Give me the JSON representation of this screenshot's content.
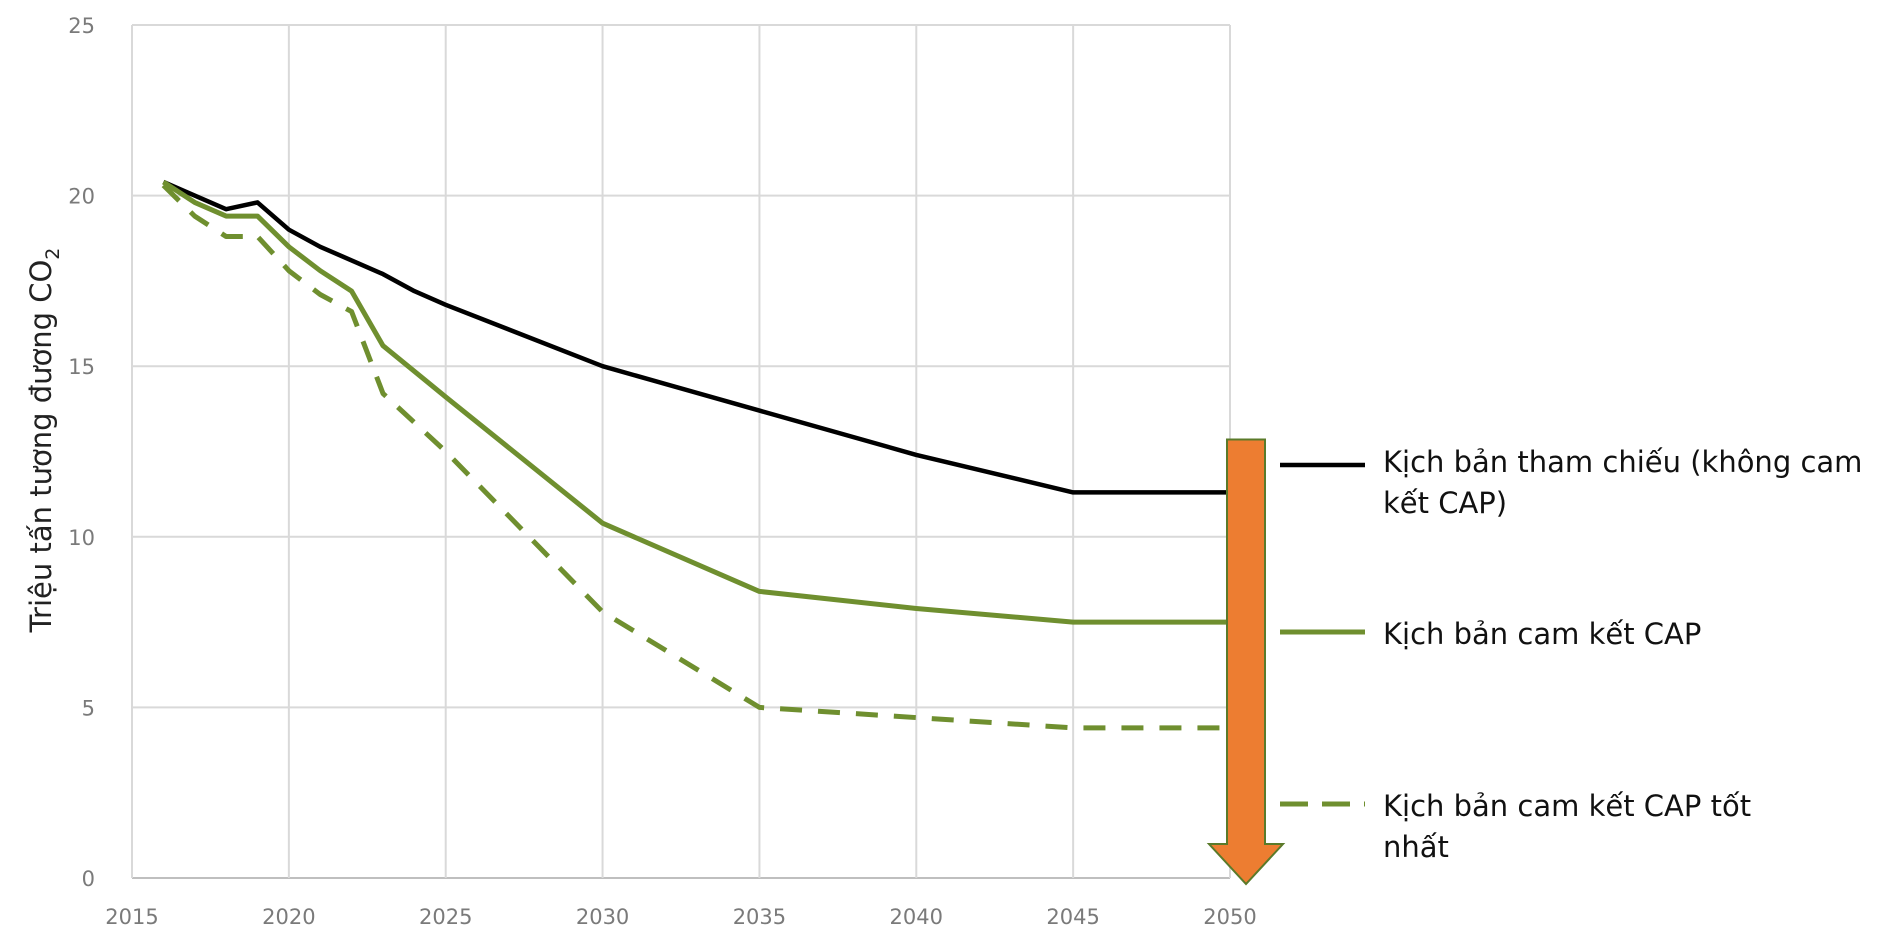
{
  "chart_data": {
    "type": "line",
    "title": "",
    "xlabel": "",
    "ylabel": "Triệu tấn tương đương CO",
    "ylabel_subscript": "2",
    "xlim": [
      2015,
      2050
    ],
    "ylim": [
      0,
      25
    ],
    "x_ticks": [
      "2015",
      "2020",
      "2025",
      "2030",
      "2035",
      "2040",
      "2045",
      "2050"
    ],
    "y_ticks": [
      "0",
      "5",
      "10",
      "15",
      "20",
      "25"
    ],
    "grid": true,
    "legend_position": "right",
    "series": [
      {
        "name": "Kịch bản tham chiếu (không cam kết CAP)",
        "color": "#000000",
        "style": "solid",
        "x": [
          2016,
          2017,
          2018,
          2019,
          2020,
          2021,
          2022,
          2023,
          2024,
          2025,
          2030,
          2035,
          2040,
          2045,
          2050
        ],
        "y": [
          20.4,
          20.0,
          19.6,
          19.8,
          19.0,
          18.5,
          18.1,
          17.7,
          17.2,
          16.8,
          15.0,
          13.7,
          12.4,
          11.3,
          11.3
        ]
      },
      {
        "name": "Kịch bản cam kết CAP",
        "color": "#6f8f2f",
        "style": "solid",
        "x": [
          2016,
          2017,
          2018,
          2019,
          2020,
          2021,
          2022,
          2023,
          2025,
          2030,
          2035,
          2040,
          2045,
          2050
        ],
        "y": [
          20.4,
          19.8,
          19.4,
          19.4,
          18.5,
          17.8,
          17.2,
          15.6,
          14.1,
          10.4,
          8.4,
          7.9,
          7.5,
          7.5
        ]
      },
      {
        "name": "Kịch bản cam kết CAP tốt nhất",
        "color": "#6f8f2f",
        "style": "dashed",
        "x": [
          2016,
          2017,
          2018,
          2019,
          2020,
          2021,
          2022,
          2023,
          2025,
          2030,
          2035,
          2040,
          2045,
          2050
        ],
        "y": [
          20.3,
          19.4,
          18.8,
          18.8,
          17.8,
          17.1,
          16.6,
          14.2,
          12.5,
          7.8,
          5.0,
          4.7,
          4.4,
          4.4
        ]
      }
    ],
    "annotation_arrow": {
      "from_y": 11.3,
      "to_y": 0,
      "at_x": 2050,
      "color": "#ed7d31"
    }
  }
}
